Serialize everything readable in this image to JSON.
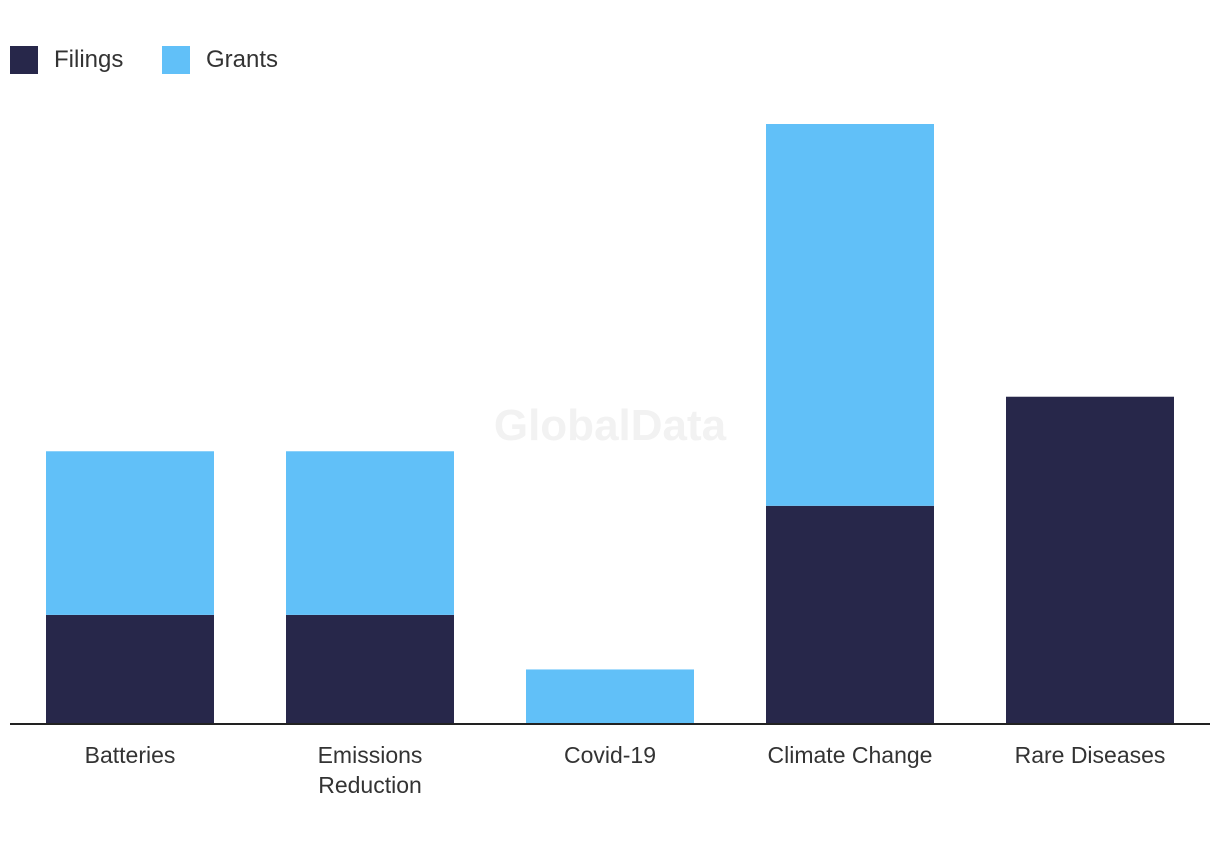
{
  "watermark": "GlobalData",
  "chart_data": {
    "type": "bar",
    "stacked": true,
    "categories": [
      [
        "Batteries"
      ],
      [
        "Emissions",
        "Reduction"
      ],
      [
        "Covid-19"
      ],
      [
        "Climate Change"
      ],
      [
        "Rare Diseases"
      ]
    ],
    "series": [
      {
        "name": "Filings",
        "color": "#27274a",
        "values": [
          2,
          2,
          0,
          4,
          6
        ]
      },
      {
        "name": "Grants",
        "color": "#61c0f8",
        "values": [
          3,
          3,
          1,
          7,
          0
        ]
      }
    ],
    "ylim": [
      0,
      11
    ],
    "legend_position": "top-left",
    "grid": false
  }
}
